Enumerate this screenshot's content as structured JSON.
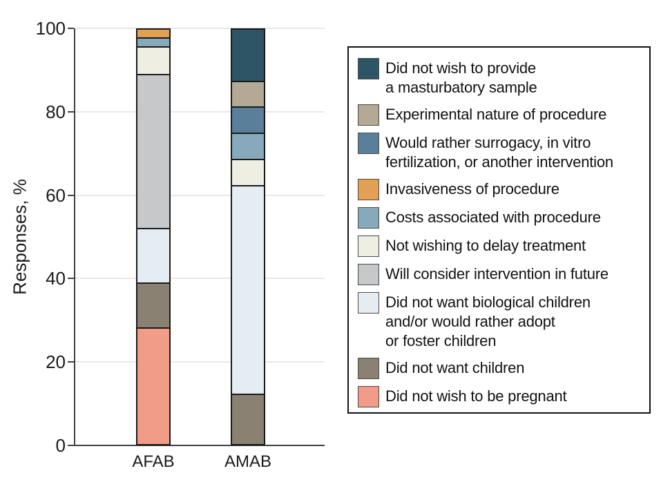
{
  "chart_data": {
    "type": "bar",
    "stacked": true,
    "title": "",
    "xlabel": "",
    "ylabel": "Responses, %",
    "ylim": [
      0,
      100
    ],
    "y_ticks": [
      0,
      20,
      40,
      60,
      80,
      100
    ],
    "grid": true,
    "legend_position": "right",
    "categories": [
      "AFAB",
      "AMAB"
    ],
    "series": [
      {
        "name": "Did not wish to provide a masturbatory sample",
        "label_lines": [
          "Did not wish to provide",
          "a masturbatory sample"
        ],
        "color": "#2E5565",
        "values": [
          0,
          12.5
        ]
      },
      {
        "name": "Experimental nature of procedure",
        "label_lines": [
          "Experimental nature of procedure"
        ],
        "color": "#B3A995",
        "values": [
          0,
          6.25
        ]
      },
      {
        "name": "Would rather surrogacy, in vitro fertilization, or another intervention",
        "label_lines": [
          "Would rather surrogacy, in vitro",
          "fertilization, or another intervention"
        ],
        "color": "#597F9B",
        "values": [
          0,
          6.25
        ]
      },
      {
        "name": "Invasiveness of procedure",
        "label_lines": [
          "Invasiveness of procedure"
        ],
        "color": "#E2A055",
        "values": [
          2.17,
          0
        ]
      },
      {
        "name": "Costs associated with procedure",
        "label_lines": [
          "Costs associated with procedure"
        ],
        "color": "#86A9BC",
        "values": [
          2.17,
          6.25
        ]
      },
      {
        "name": "Not wishing to delay treatment",
        "label_lines": [
          "Not wishing to delay treatment"
        ],
        "color": "#EEEFE2",
        "values": [
          6.52,
          6.25
        ]
      },
      {
        "name": "Will consider intervention in future",
        "label_lines": [
          "Will consider intervention in future"
        ],
        "color": "#C7C8CA",
        "values": [
          36.96,
          0
        ]
      },
      {
        "name": "Did not want biological children and/or would rather adopt or foster children",
        "label_lines": [
          "Did not want biological children",
          "and/or would rather adopt",
          "or foster children"
        ],
        "color": "#E6EDF2",
        "values": [
          13.04,
          50.0
        ]
      },
      {
        "name": "Did not want children",
        "label_lines": [
          "Did not want children"
        ],
        "color": "#8A8173",
        "values": [
          10.87,
          12.5
        ]
      },
      {
        "name": "Did not wish to be pregnant",
        "label_lines": [
          "Did not wish to be pregnant"
        ],
        "color": "#F19C86",
        "values": [
          28.26,
          0
        ]
      }
    ],
    "style": {
      "grid_color": "#E8E8E8",
      "axis_color": "#3F3F3F",
      "segment_border_color": "#1A1A1A",
      "text_color": "#1A1A1A",
      "legend_border_color": "#101010"
    }
  }
}
